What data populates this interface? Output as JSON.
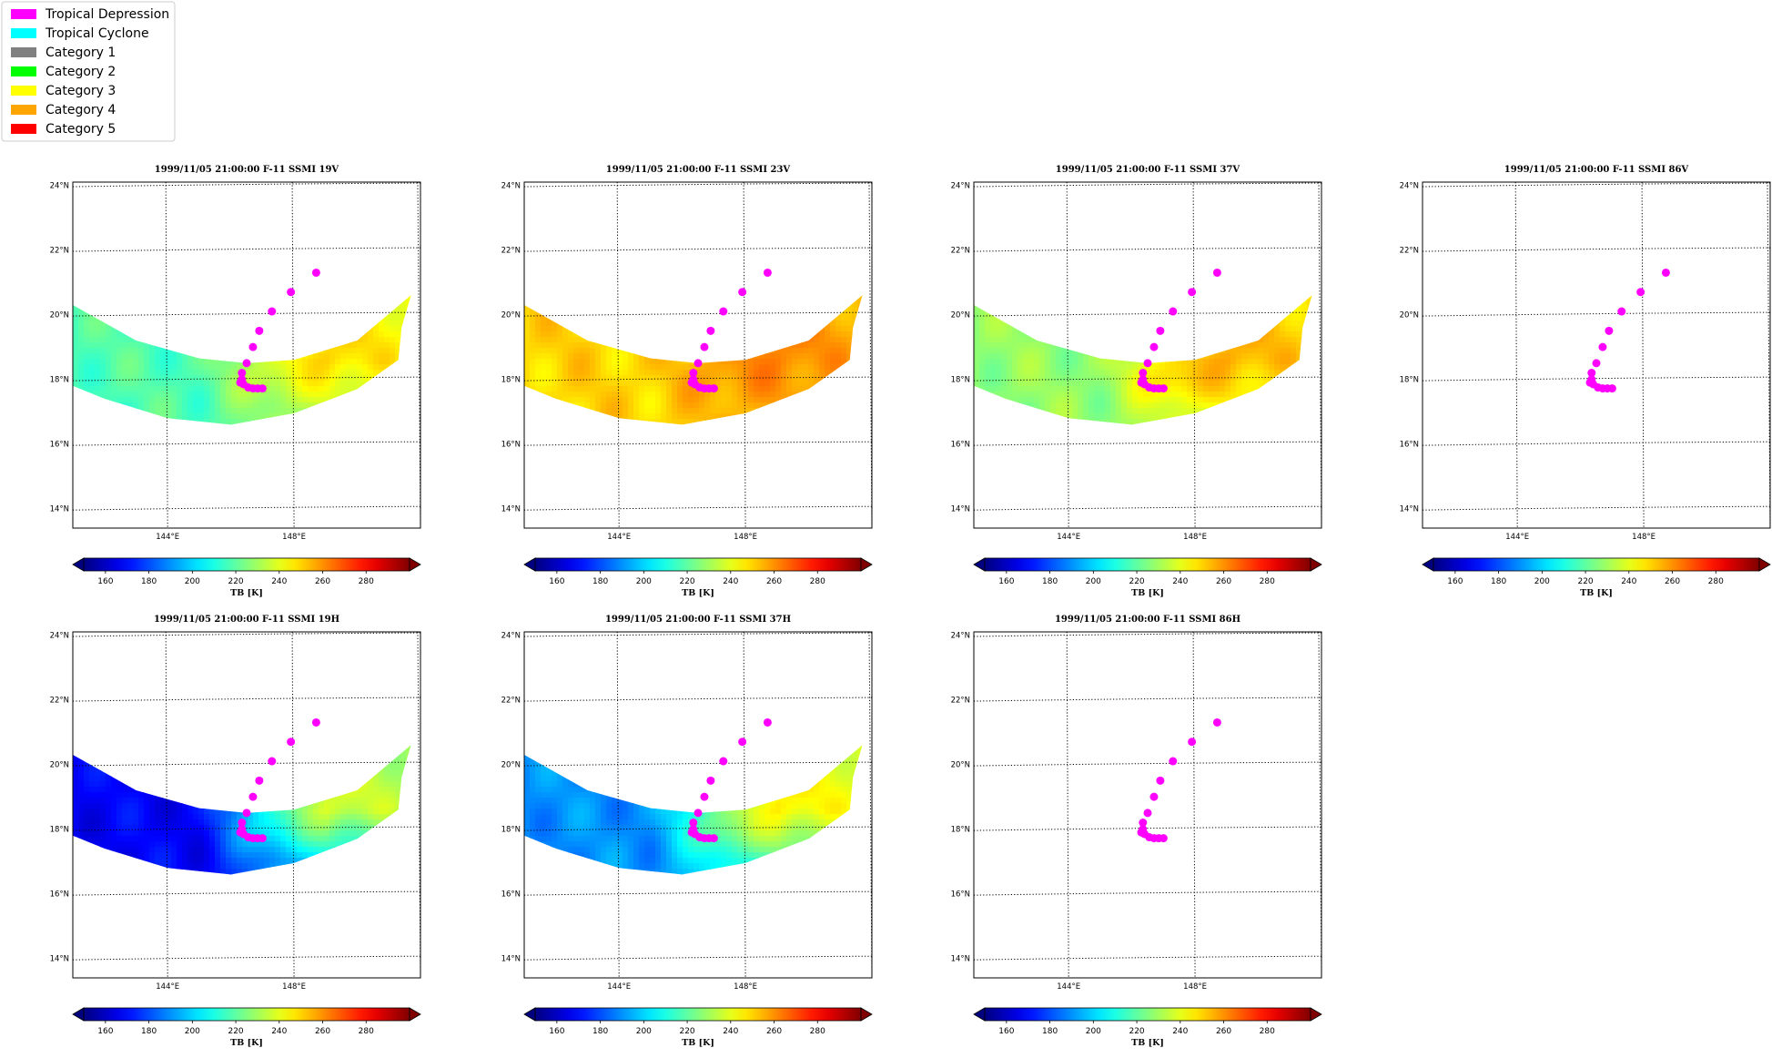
{
  "legend": {
    "items": [
      {
        "label": "Tropical Depression",
        "color": "#ff00ff"
      },
      {
        "label": "Tropical Cyclone",
        "color": "#00ffff"
      },
      {
        "label": "Category 1",
        "color": "#808080"
      },
      {
        "label": "Category 2",
        "color": "#00ff00"
      },
      {
        "label": "Category 3",
        "color": "#ffff00"
      },
      {
        "label": "Category 4",
        "color": "#ffa500"
      },
      {
        "label": "Category 5",
        "color": "#ff0000"
      }
    ]
  },
  "map": {
    "lat_ticks": [
      {
        "value": 24,
        "label": "24°N"
      },
      {
        "value": 22,
        "label": "22°N"
      },
      {
        "value": 20,
        "label": "20°N"
      },
      {
        "value": 18,
        "label": "18°N"
      },
      {
        "value": 16,
        "label": "16°N"
      },
      {
        "value": 14,
        "label": "14°N"
      }
    ],
    "lon_ticks": [
      {
        "value": 144,
        "label": "144°E"
      },
      {
        "value": 148,
        "label": "148°E"
      }
    ],
    "lon_range": [
      141,
      152
    ],
    "lat_range": [
      13.4,
      24.1
    ],
    "swath": {
      "north_edge": [
        [
          141.0,
          20.3
        ],
        [
          143.0,
          19.2
        ],
        [
          145.0,
          18.65
        ],
        [
          146.5,
          18.5
        ],
        [
          148.0,
          18.6
        ],
        [
          150.0,
          19.2
        ],
        [
          151.7,
          20.6
        ]
      ],
      "south_edge": [
        [
          151.4,
          19.6
        ],
        [
          151.3,
          18.6
        ],
        [
          150.0,
          17.7
        ],
        [
          148.0,
          16.95
        ],
        [
          146.0,
          16.6
        ],
        [
          144.0,
          16.8
        ],
        [
          142.0,
          17.4
        ],
        [
          141.0,
          17.8
        ]
      ]
    },
    "track": [
      [
        148.7,
        21.3
      ],
      [
        147.9,
        20.7
      ],
      [
        147.3,
        20.1
      ],
      [
        146.9,
        19.5
      ],
      [
        146.7,
        19.0
      ],
      [
        146.5,
        18.5
      ],
      [
        146.35,
        18.2
      ],
      [
        146.35,
        18.0
      ],
      [
        146.4,
        17.85
      ],
      [
        146.55,
        17.75
      ],
      [
        146.7,
        17.72
      ],
      [
        146.85,
        17.72
      ],
      [
        147.0,
        17.72
      ],
      [
        146.3,
        17.9
      ]
    ],
    "track_color": "#ff00ff"
  },
  "colorbar": {
    "label": "TB [K]",
    "min": 150,
    "max": 300,
    "ticks": [
      160,
      180,
      200,
      220,
      240,
      260,
      280
    ],
    "colormap": "jet"
  },
  "panels": [
    {
      "title": "1999/11/05 21:00:00  F-11 SSMI 19V",
      "field": "19V",
      "has_data": true
    },
    {
      "title": "1999/11/05 21:00:00  F-11 SSMI 23V",
      "field": "23V",
      "has_data": true
    },
    {
      "title": "1999/11/05 21:00:00  F-11 SSMI 37V",
      "field": "37V",
      "has_data": true
    },
    {
      "title": "1999/11/05 21:00:00  F-11 SSMI 86V",
      "field": "86V",
      "has_data": false
    },
    {
      "title": "1999/11/05 21:00:00  F-11 SSMI 19H",
      "field": "19H",
      "has_data": true
    },
    {
      "title": "1999/11/05 21:00:00  F-11 SSMI 37H",
      "field": "37H",
      "has_data": true
    },
    {
      "title": "1999/11/05 21:00:00  F-11 SSMI 86H",
      "field": "86H",
      "has_data": false
    }
  ]
}
